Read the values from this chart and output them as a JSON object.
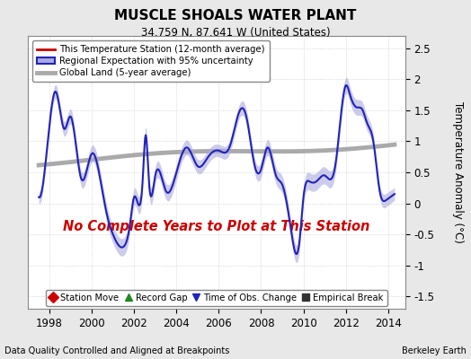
{
  "title": "MUSCLE SHOALS WATER PLANT",
  "subtitle": "34.759 N, 87.641 W (United States)",
  "ylabel": "Temperature Anomaly (°C)",
  "ylim": [
    -1.7,
    2.7
  ],
  "yticks": [
    -1.5,
    -1.0,
    -0.5,
    0.0,
    0.5,
    1.0,
    1.5,
    2.0,
    2.5
  ],
  "xlim": [
    1997.0,
    2014.8
  ],
  "xticks": [
    1998,
    2000,
    2002,
    2004,
    2006,
    2008,
    2010,
    2012,
    2014
  ],
  "no_data_text": "No Complete Years to Plot at This Station",
  "footer_left": "Data Quality Controlled and Aligned at Breakpoints",
  "footer_right": "Berkeley Earth",
  "bg_color": "#e8e8e8",
  "plot_bg_color": "#ffffff",
  "regional_color": "#2222bb",
  "regional_fill_color": "#aaaadd",
  "station_color": "#cc0000",
  "global_land_color": "#aaaaaa",
  "no_data_color": "#cc0000",
  "legend1_items": [
    {
      "label": "This Temperature Station (12-month average)",
      "color": "#cc0000",
      "lw": 2
    },
    {
      "label": "Regional Expectation with 95% uncertainty",
      "color": "#2222bb",
      "lw": 2
    },
    {
      "label": "Global Land (5-year average)",
      "color": "#aaaaaa",
      "lw": 3
    }
  ],
  "legend2_items": [
    {
      "label": "Station Move",
      "marker": "D",
      "color": "#cc0000"
    },
    {
      "label": "Record Gap",
      "marker": "^",
      "color": "#228822"
    },
    {
      "label": "Time of Obs. Change",
      "marker": "v",
      "color": "#2222bb"
    },
    {
      "label": "Empirical Break",
      "marker": "s",
      "color": "#333333"
    }
  ]
}
